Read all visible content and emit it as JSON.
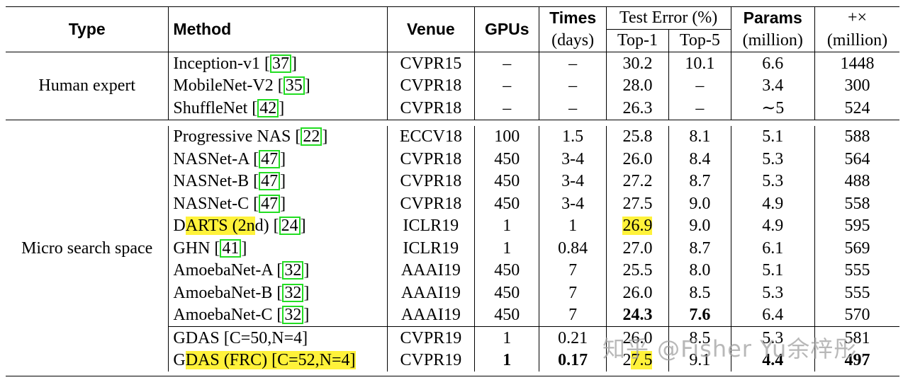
{
  "header": {
    "type": "Type",
    "method": "Method",
    "venue": "Venue",
    "gpus": "GPUs",
    "times": "Times",
    "times_unit": "(days)",
    "test_error": "Test Error (%)",
    "top1": "Top-1",
    "top5": "Top-5",
    "params": "Params",
    "params_unit": "(million)",
    "flops": "+×",
    "flops_unit": "(million)"
  },
  "groups": {
    "human": "Human expert",
    "micro": "Micro search space"
  },
  "rows": [
    {
      "method": "Inception-v1 ",
      "cite": "37",
      "venue": "CVPR15",
      "gpus": "–",
      "times": "–",
      "top1": "30.2",
      "top5": "10.1",
      "params": "6.6",
      "flops": "1448"
    },
    {
      "method": "MobileNet-V2 ",
      "cite": "35",
      "venue": "CVPR18",
      "gpus": "–",
      "times": "–",
      "top1": "28.0",
      "top5": "–",
      "params": "3.4",
      "flops": "300"
    },
    {
      "method": "ShuffleNet ",
      "cite": "42",
      "venue": "CVPR18",
      "gpus": "–",
      "times": "–",
      "top1": "26.3",
      "top5": "–",
      "params": "∼5",
      "flops": "524"
    },
    {
      "method": "Progressive NAS ",
      "cite": "22",
      "venue": "ECCV18",
      "gpus": "100",
      "times": "1.5",
      "top1": "25.8",
      "top5": "8.1",
      "params": "5.1",
      "flops": "588"
    },
    {
      "method": "NASNet-A ",
      "cite": "47",
      "venue": "CVPR18",
      "gpus": "450",
      "times": "3-4",
      "top1": "26.0",
      "top5": "8.4",
      "params": "5.3",
      "flops": "564"
    },
    {
      "method": "NASNet-B ",
      "cite": "47",
      "venue": "CVPR18",
      "gpus": "450",
      "times": "3-4",
      "top1": "27.2",
      "top5": "8.7",
      "params": "5.3",
      "flops": "488"
    },
    {
      "method": "NASNet-C ",
      "cite": "47",
      "venue": "CVPR18",
      "gpus": "450",
      "times": "3-4",
      "top1": "27.5",
      "top5": "9.0",
      "params": "4.9",
      "flops": "558"
    },
    {
      "method_pre": "D",
      "method_hl": "ARTS (2n",
      "method_post": "d) ",
      "cite": "24",
      "venue": "ICLR19",
      "gpus": "1",
      "times": "1",
      "top1": "26.9",
      "top5": "9.0",
      "params": "4.9",
      "flops": "595"
    },
    {
      "method": "GHN ",
      "cite": "41",
      "venue": "ICLR19",
      "gpus": "1",
      "times": "0.84",
      "top1": "27.0",
      "top5": "8.7",
      "params": "6.1",
      "flops": "569"
    },
    {
      "method": "AmoebaNet-A ",
      "cite": "32",
      "venue": "AAAI19",
      "gpus": "450",
      "times": "7",
      "top1": "25.5",
      "top5": "8.0",
      "params": "5.1",
      "flops": "555"
    },
    {
      "method": "AmoebaNet-B ",
      "cite": "32",
      "venue": "AAAI19",
      "gpus": "450",
      "times": "7",
      "top1": "26.0",
      "top5": "8.5",
      "params": "5.3",
      "flops": "555"
    },
    {
      "method": "AmoebaNet-C ",
      "cite": "32",
      "venue": "AAAI19",
      "gpus": "450",
      "times": "7",
      "top1": "24.3",
      "top5": "7.6",
      "params": "6.4",
      "flops": "570"
    },
    {
      "method": "GDAS [C=50,N=4]",
      "venue": "CVPR19",
      "gpus": "1",
      "times": "0.21",
      "top1": "26.0",
      "top5": "8.5",
      "params": "5.3",
      "flops": "581"
    },
    {
      "method_pre": "G",
      "method_hl": "DAS (FRC) [C=52,N=4]",
      "venue": "CVPR19",
      "gpus": "1",
      "times": "0.17",
      "top1_pre": "2",
      "top1_hl": "7.5",
      "top5": "9.1",
      "params": "4.4",
      "flops": "497"
    }
  ],
  "watermark": "知乎 @Fisher Yu余梓彤",
  "colors": {
    "highlight": "#fff23a",
    "cite_box": "#22dd22"
  }
}
